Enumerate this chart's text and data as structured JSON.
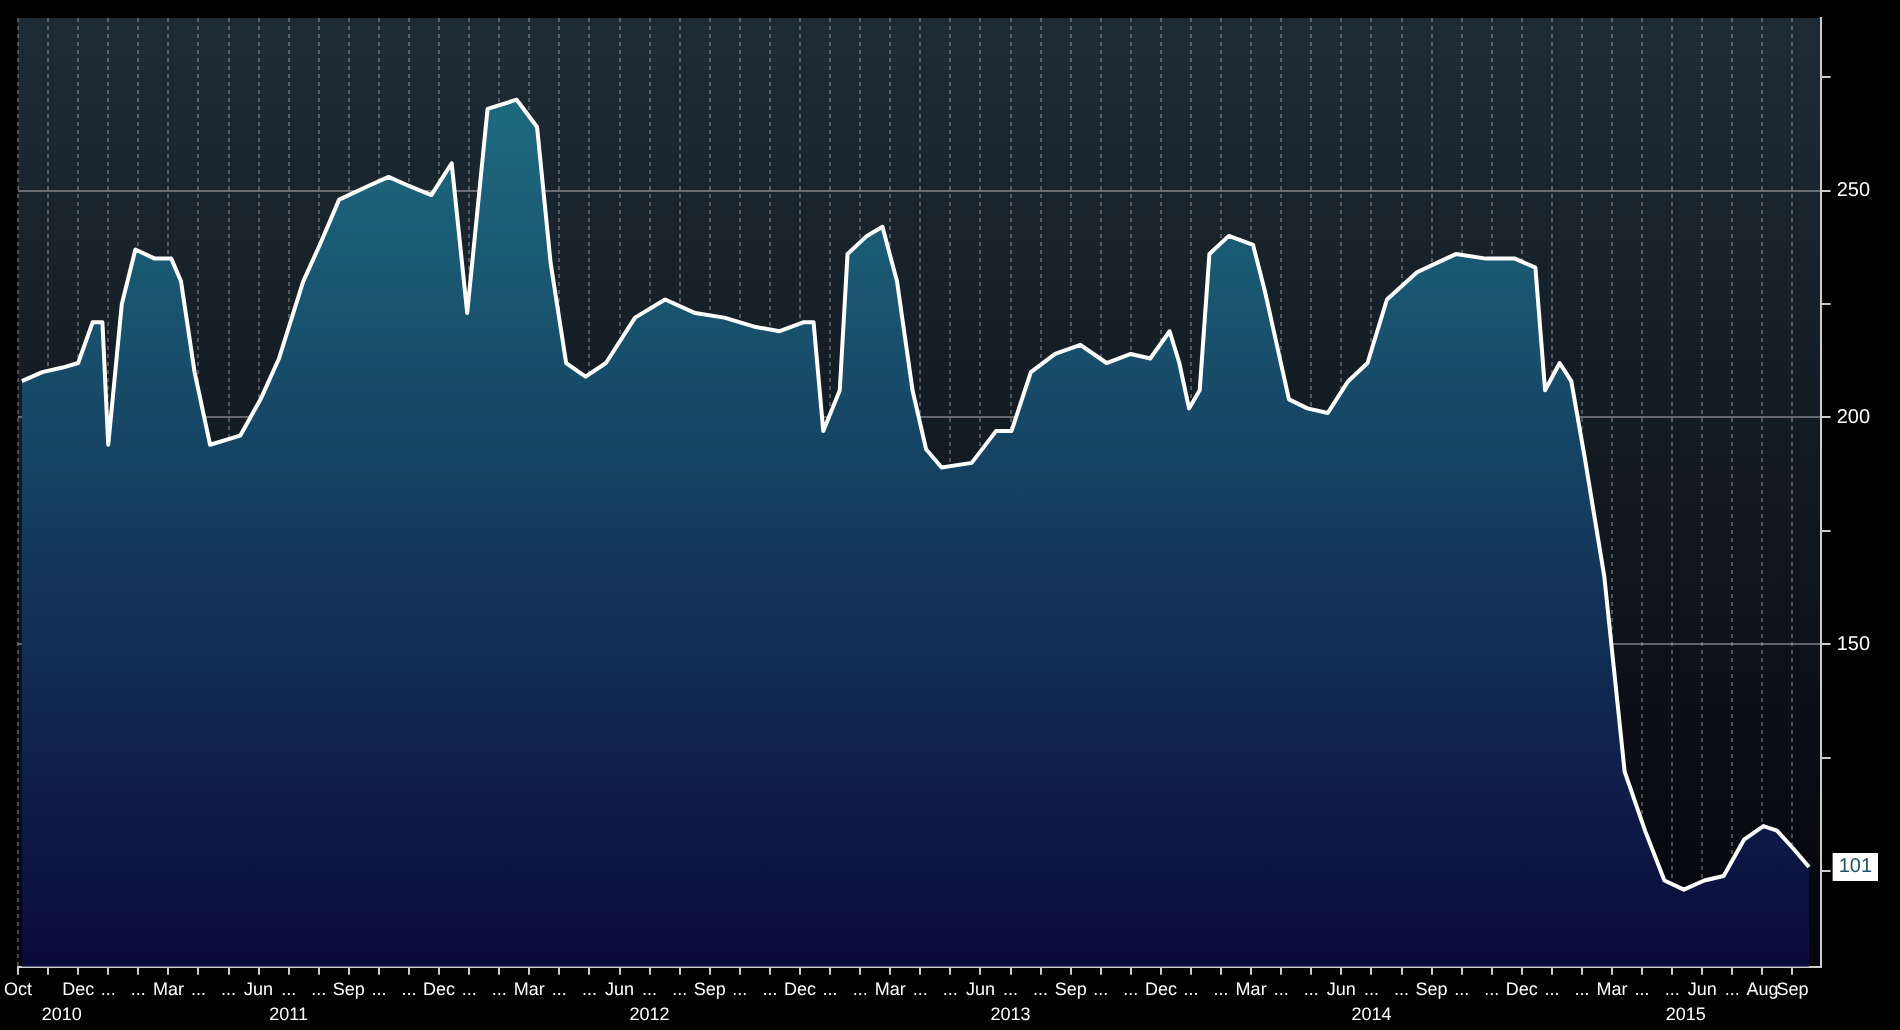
{
  "chart_data": {
    "type": "area",
    "x": [
      "2010-10-05",
      "2010-10-26",
      "2010-11-16",
      "2010-12-01",
      "2010-12-16",
      "2010-12-26",
      "2011-01-01",
      "2011-01-15",
      "2011-01-29",
      "2011-02-18",
      "2011-03-04",
      "2011-03-14",
      "2011-03-28",
      "2011-04-13",
      "2011-05-13",
      "2011-06-03",
      "2011-06-22",
      "2011-07-16",
      "2011-08-02",
      "2011-08-22",
      "2011-09-21",
      "2011-10-11",
      "2011-11-01",
      "2011-11-24",
      "2011-12-14",
      "2011-12-30",
      "2012-01-20",
      "2012-02-19",
      "2012-03-09",
      "2012-03-23",
      "2012-04-08",
      "2012-04-28",
      "2012-05-18",
      "2012-06-17",
      "2012-07-17",
      "2012-08-17",
      "2012-09-16",
      "2012-10-16",
      "2012-11-11",
      "2012-12-05",
      "2012-12-15",
      "2012-12-25",
      "2013-01-11",
      "2013-01-19",
      "2013-02-08",
      "2013-02-24",
      "2013-03-08",
      "2013-03-24",
      "2013-04-07",
      "2013-04-23",
      "2013-05-23",
      "2013-06-17",
      "2013-07-02",
      "2013-07-22",
      "2013-08-16",
      "2013-09-11",
      "2013-10-07",
      "2013-11-01",
      "2013-11-21",
      "2013-12-10",
      "2013-12-20",
      "2013-12-30",
      "2014-01-10",
      "2014-01-20",
      "2014-02-09",
      "2014-03-03",
      "2014-03-15",
      "2014-04-09",
      "2014-04-28",
      "2014-05-18",
      "2014-06-08",
      "2014-06-28",
      "2014-07-17",
      "2014-08-17",
      "2014-09-06",
      "2014-09-26",
      "2014-10-26",
      "2014-11-25",
      "2014-12-15",
      "2014-12-25",
      "2015-01-09",
      "2015-01-21",
      "2015-02-04",
      "2015-02-24",
      "2015-03-14",
      "2015-04-04",
      "2015-04-24",
      "2015-05-13",
      "2015-06-03",
      "2015-06-23",
      "2015-07-13",
      "2015-08-02",
      "2015-08-16",
      "2015-09-02",
      "2015-09-18"
    ],
    "series": [
      {
        "color": "#1f7486",
        "values": [
          208,
          210,
          211,
          212,
          221,
          221,
          194,
          225,
          237,
          235,
          235,
          230,
          210,
          194,
          196,
          204,
          213,
          230,
          238,
          248,
          251,
          253,
          251,
          249,
          256,
          223,
          268,
          270,
          264,
          234,
          212,
          209,
          212,
          222,
          226,
          223,
          222,
          220,
          219,
          221,
          221,
          197,
          206,
          236,
          240,
          242,
          230,
          206,
          193,
          189,
          190,
          197,
          197,
          210,
          214,
          216,
          212,
          214,
          213,
          219,
          212,
          202,
          206,
          236,
          240,
          238,
          228,
          204,
          202,
          201,
          208,
          212,
          226,
          232,
          234,
          236,
          235,
          235,
          233,
          206,
          212,
          208,
          191,
          165,
          122,
          109,
          98,
          96,
          98,
          99,
          107,
          110,
          109,
          105,
          101
        ],
        "value_labels": [
          null,
          null,
          null,
          null,
          null,
          null,
          null,
          null,
          null,
          null,
          null,
          null,
          null,
          null,
          null,
          null,
          null,
          null,
          null,
          null,
          null,
          null,
          null,
          null,
          null,
          null,
          null,
          null,
          null,
          null,
          null,
          null,
          null,
          null,
          null,
          null,
          null,
          null,
          null,
          null,
          null,
          null,
          null,
          null,
          null,
          null,
          null,
          null,
          null,
          null,
          null,
          null,
          null,
          null,
          null,
          null,
          null,
          null,
          null,
          null,
          null,
          null,
          null,
          null,
          null,
          null,
          null,
          null,
          null,
          null,
          null,
          null,
          null,
          null,
          null,
          null,
          null,
          null,
          null,
          null,
          null,
          null,
          null,
          null,
          null,
          null,
          null,
          null,
          null,
          null,
          null,
          null,
          null,
          null,
          "101"
        ]
      }
    ],
    "ylim": [
      79,
      288
    ],
    "yticks": [
      {
        "value": 100,
        "label": null
      },
      {
        "value": 125,
        "label": null
      },
      150,
      {
        "value": 175,
        "label": null
      },
      200,
      {
        "value": 225,
        "label": null
      },
      250,
      {
        "value": 275,
        "label": null
      }
    ],
    "xlim": [
      "2010-10-01",
      "2015-09-30"
    ],
    "xticks": [
      {
        "value": "2010-10-01",
        "label": "Oct"
      },
      {
        "value": "2010-11-01",
        "label": null
      },
      {
        "value": "2010-12-01",
        "label": "Dec"
      },
      {
        "value": "2011-01-01",
        "label": "..."
      },
      {
        "value": "2011-02-01",
        "label": "..."
      },
      {
        "value": "2011-03-01",
        "label": "Mar"
      },
      {
        "value": "2011-04-01",
        "label": "..."
      },
      {
        "value": "2011-05-01",
        "label": "..."
      },
      {
        "value": "2011-06-01",
        "label": "Jun"
      },
      {
        "value": "2011-07-01",
        "label": "..."
      },
      {
        "value": "2011-08-01",
        "label": "..."
      },
      {
        "value": "2011-09-01",
        "label": "Sep"
      },
      {
        "value": "2011-10-01",
        "label": "..."
      },
      {
        "value": "2011-11-01",
        "label": "..."
      },
      {
        "value": "2011-12-01",
        "label": "Dec"
      },
      {
        "value": "2012-01-01",
        "label": "..."
      },
      {
        "value": "2012-02-01",
        "label": "..."
      },
      {
        "value": "2012-03-01",
        "label": "Mar"
      },
      {
        "value": "2012-04-01",
        "label": "..."
      },
      {
        "value": "2012-05-01",
        "label": "..."
      },
      {
        "value": "2012-06-01",
        "label": "Jun"
      },
      {
        "value": "2012-07-01",
        "label": "..."
      },
      {
        "value": "2012-08-01",
        "label": "..."
      },
      {
        "value": "2012-09-01",
        "label": "Sep"
      },
      {
        "value": "2012-10-01",
        "label": "..."
      },
      {
        "value": "2012-11-01",
        "label": "..."
      },
      {
        "value": "2012-12-01",
        "label": "Dec"
      },
      {
        "value": "2013-01-01",
        "label": "..."
      },
      {
        "value": "2013-02-01",
        "label": "..."
      },
      {
        "value": "2013-03-01",
        "label": "Mar"
      },
      {
        "value": "2013-04-01",
        "label": "..."
      },
      {
        "value": "2013-05-01",
        "label": "..."
      },
      {
        "value": "2013-06-01",
        "label": "Jun"
      },
      {
        "value": "2013-07-01",
        "label": "..."
      },
      {
        "value": "2013-08-01",
        "label": "..."
      },
      {
        "value": "2013-09-01",
        "label": "Sep"
      },
      {
        "value": "2013-10-01",
        "label": "..."
      },
      {
        "value": "2013-11-01",
        "label": "..."
      },
      {
        "value": "2013-12-01",
        "label": "Dec"
      },
      {
        "value": "2014-01-01",
        "label": "..."
      },
      {
        "value": "2014-02-01",
        "label": "..."
      },
      {
        "value": "2014-03-01",
        "label": "Mar"
      },
      {
        "value": "2014-04-01",
        "label": "..."
      },
      {
        "value": "2014-05-01",
        "label": "..."
      },
      {
        "value": "2014-06-01",
        "label": "Jun"
      },
      {
        "value": "2014-07-01",
        "label": "..."
      },
      {
        "value": "2014-08-01",
        "label": "..."
      },
      {
        "value": "2014-09-01",
        "label": "Sep"
      },
      {
        "value": "2014-10-01",
        "label": "..."
      },
      {
        "value": "2014-11-01",
        "label": "..."
      },
      {
        "value": "2014-12-01",
        "label": "Dec"
      },
      {
        "value": "2015-01-01",
        "label": "..."
      },
      {
        "value": "2015-02-01",
        "label": "..."
      },
      {
        "value": "2015-03-01",
        "label": "Mar"
      },
      {
        "value": "2015-04-01",
        "label": "..."
      },
      {
        "value": "2015-05-01",
        "label": "..."
      },
      {
        "value": "2015-06-01",
        "label": "Jun"
      },
      {
        "value": "2015-07-01",
        "label": "..."
      },
      {
        "value": "2015-08-01",
        "label": "Aug"
      },
      {
        "value": "2015-09-01",
        "label": "Sep"
      }
    ],
    "x2lim": [
      "2010-10-01",
      "2015-09-30"
    ],
    "x2ticks": [
      {
        "value": "2010-11-15",
        "label": "2010"
      },
      {
        "value": "2011-07-01",
        "label": "2011"
      },
      {
        "value": "2012-07-01",
        "label": "2012"
      },
      {
        "value": "2013-07-01",
        "label": "2013"
      },
      {
        "value": "2014-07-01",
        "label": "2014"
      },
      {
        "value": "2015-05-15",
        "label": "2015"
      }
    ],
    "grid": true,
    "legend": false
  }
}
